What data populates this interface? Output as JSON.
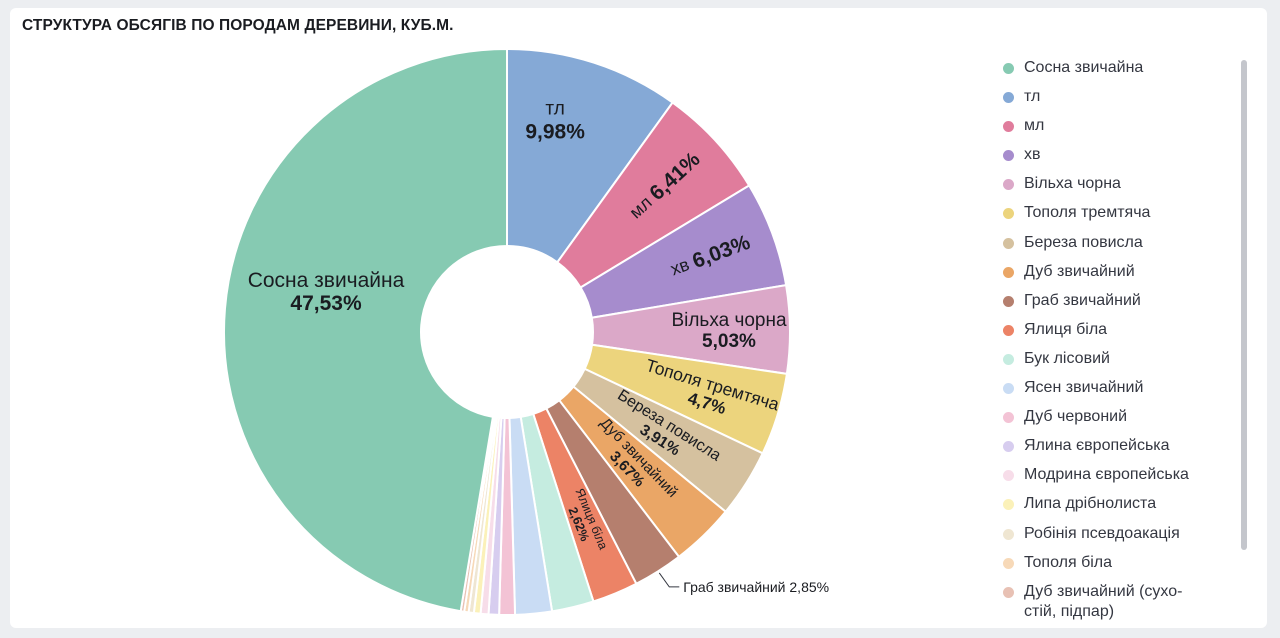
{
  "panel": {
    "title": "СТРУКТУРА ОБСЯГІВ ПО ПОРОДАМ ДЕРЕВИНИ, КУБ.М."
  },
  "colors": {
    "label_dark": "#1a1c21",
    "leader_line": "#343741",
    "slice_border": "#ffffff"
  },
  "chart_data": {
    "type": "pie",
    "donut": true,
    "title": "СТРУКТУРА ОБСЯГІВ ПО ПОРОДАМ ДЕРЕВИНИ, КУБ.М.",
    "legend_position": "right",
    "unit": "%",
    "slices": [
      {
        "name": "тл",
        "value": 9.98,
        "label": "9,98%",
        "color": "#85a9d6"
      },
      {
        "name": "мл",
        "value": 6.41,
        "label": "6,41%",
        "color": "#e07c9c"
      },
      {
        "name": "хв",
        "value": 6.03,
        "label": "6,03%",
        "color": "#a68ccd"
      },
      {
        "name": "Вільха чорна",
        "value": 5.03,
        "label": "5,03%",
        "color": "#dba8c8"
      },
      {
        "name": "Тополя тремтяча",
        "value": 4.7,
        "label": "4,7%",
        "color": "#ecd47d"
      },
      {
        "name": "Береза повисла",
        "value": 3.91,
        "label": "3,91%",
        "color": "#d5c19f"
      },
      {
        "name": "Дуб звичайний",
        "value": 3.67,
        "label": "3,67%",
        "color": "#eaa666"
      },
      {
        "name": "Граб звичайний",
        "value": 2.85,
        "label": "2,85%",
        "color": "#b57f6e"
      },
      {
        "name": "Ялиця біла",
        "value": 2.62,
        "label": "2,62%",
        "color": "#ec8366"
      },
      {
        "name": "Бук лісовий",
        "value": 2.4,
        "label": "",
        "color": "#c5ece0"
      },
      {
        "name": "Ясен звичайний",
        "value": 2.1,
        "label": "",
        "color": "#c9dcf4"
      },
      {
        "name": "Дуб червоний",
        "value": 0.9,
        "label": "",
        "color": "#f3c3d5"
      },
      {
        "name": "Ялина європейська",
        "value": 0.6,
        "label": "",
        "color": "#d7cdef"
      },
      {
        "name": "Модрина європейська",
        "value": 0.45,
        "label": "",
        "color": "#f7dde9"
      },
      {
        "name": "Липа дрібнолиста",
        "value": 0.38,
        "label": "",
        "color": "#fbf1b9"
      },
      {
        "name": "Робінія псевдоакація",
        "value": 0.3,
        "label": "",
        "color": "#efe6d2"
      },
      {
        "name": "Тополя біла",
        "value": 0.25,
        "label": "",
        "color": "#f7d9b8"
      },
      {
        "name": "Дуб звичайний (сухостій, підпар)",
        "value": 0.2,
        "label": "",
        "color": "#e8c1b4"
      },
      {
        "name": "Сосна звичайна",
        "value": 47.53,
        "label": "47,53%",
        "color": "#86cab2"
      }
    ],
    "legend": [
      {
        "name": "Сосна звичайна",
        "color": "#86cab2"
      },
      {
        "name": "тл",
        "color": "#85a9d6"
      },
      {
        "name": "мл",
        "color": "#e07c9c"
      },
      {
        "name": "хв",
        "color": "#a68ccd"
      },
      {
        "name": "Вільха чорна",
        "color": "#dba8c8"
      },
      {
        "name": "Тополя тремтяча",
        "color": "#ecd47d"
      },
      {
        "name": "Береза повисла",
        "color": "#d5c19f"
      },
      {
        "name": "Дуб звичайний",
        "color": "#eaa666"
      },
      {
        "name": "Граб звичайний",
        "color": "#b57f6e"
      },
      {
        "name": "Ялиця біла",
        "color": "#ec8366"
      },
      {
        "name": "Бук лісовий",
        "color": "#c5ece0"
      },
      {
        "name": "Ясен звичайний",
        "color": "#c9dcf4"
      },
      {
        "name": "Дуб червоний",
        "color": "#f3c3d5"
      },
      {
        "name": "Ялина європейська",
        "color": "#d7cdef"
      },
      {
        "name": "Модрина європейська",
        "color": "#f7dde9"
      },
      {
        "name": "Липа дрібнолиста",
        "color": "#fbf1b9"
      },
      {
        "name": "Робінія псевдоакація",
        "color": "#efe6d2"
      },
      {
        "name": "Тополя біла",
        "color": "#f7d9b8"
      },
      {
        "name": "Дуб звичайний (сухостій, підпар)",
        "display": "Дуб звичайний (сухо-стій, підпар)",
        "color": "#e8c1b4"
      }
    ],
    "external_labels": [
      {
        "name": "Граб звичайний",
        "text": "Граб звичайний  2,85%"
      }
    ]
  }
}
